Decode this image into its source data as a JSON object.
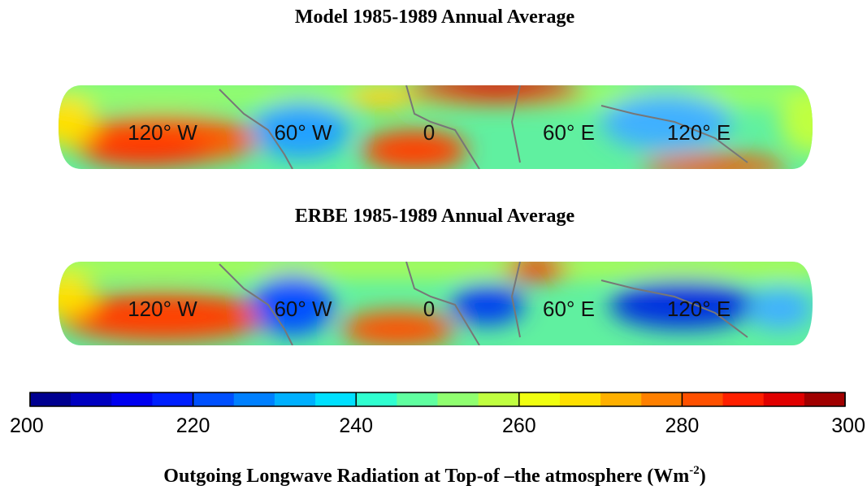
{
  "maps": [
    {
      "title": "Model 1985-1989 Annual Average",
      "lon_labels": [
        "120° W",
        "60° W",
        "0",
        "60° E",
        "120° E"
      ]
    },
    {
      "title": "ERBE 1985-1989 Annual Average",
      "lon_labels": [
        "120° W",
        "60° W",
        "0",
        "60° E",
        "120° E"
      ]
    }
  ],
  "colorbar": {
    "lim": [
      200,
      300
    ],
    "ticks": [
      200,
      220,
      240,
      260,
      280,
      300
    ],
    "colors": [
      "#000090",
      "#0000c0",
      "#0000f0",
      "#0020ff",
      "#0050ff",
      "#0080ff",
      "#00b0ff",
      "#00e0ff",
      "#30ffd0",
      "#60ffa0",
      "#90ff70",
      "#c0ff40",
      "#f0ff10",
      "#ffe000",
      "#ffb000",
      "#ff8000",
      "#ff5000",
      "#ff2000",
      "#e00000",
      "#a00000"
    ],
    "label": {
      "text": "Outgoing Longwave Radiation at Top-of –the atmosphere (Wm",
      "superscript": "-2",
      "suffix": ")"
    }
  }
}
